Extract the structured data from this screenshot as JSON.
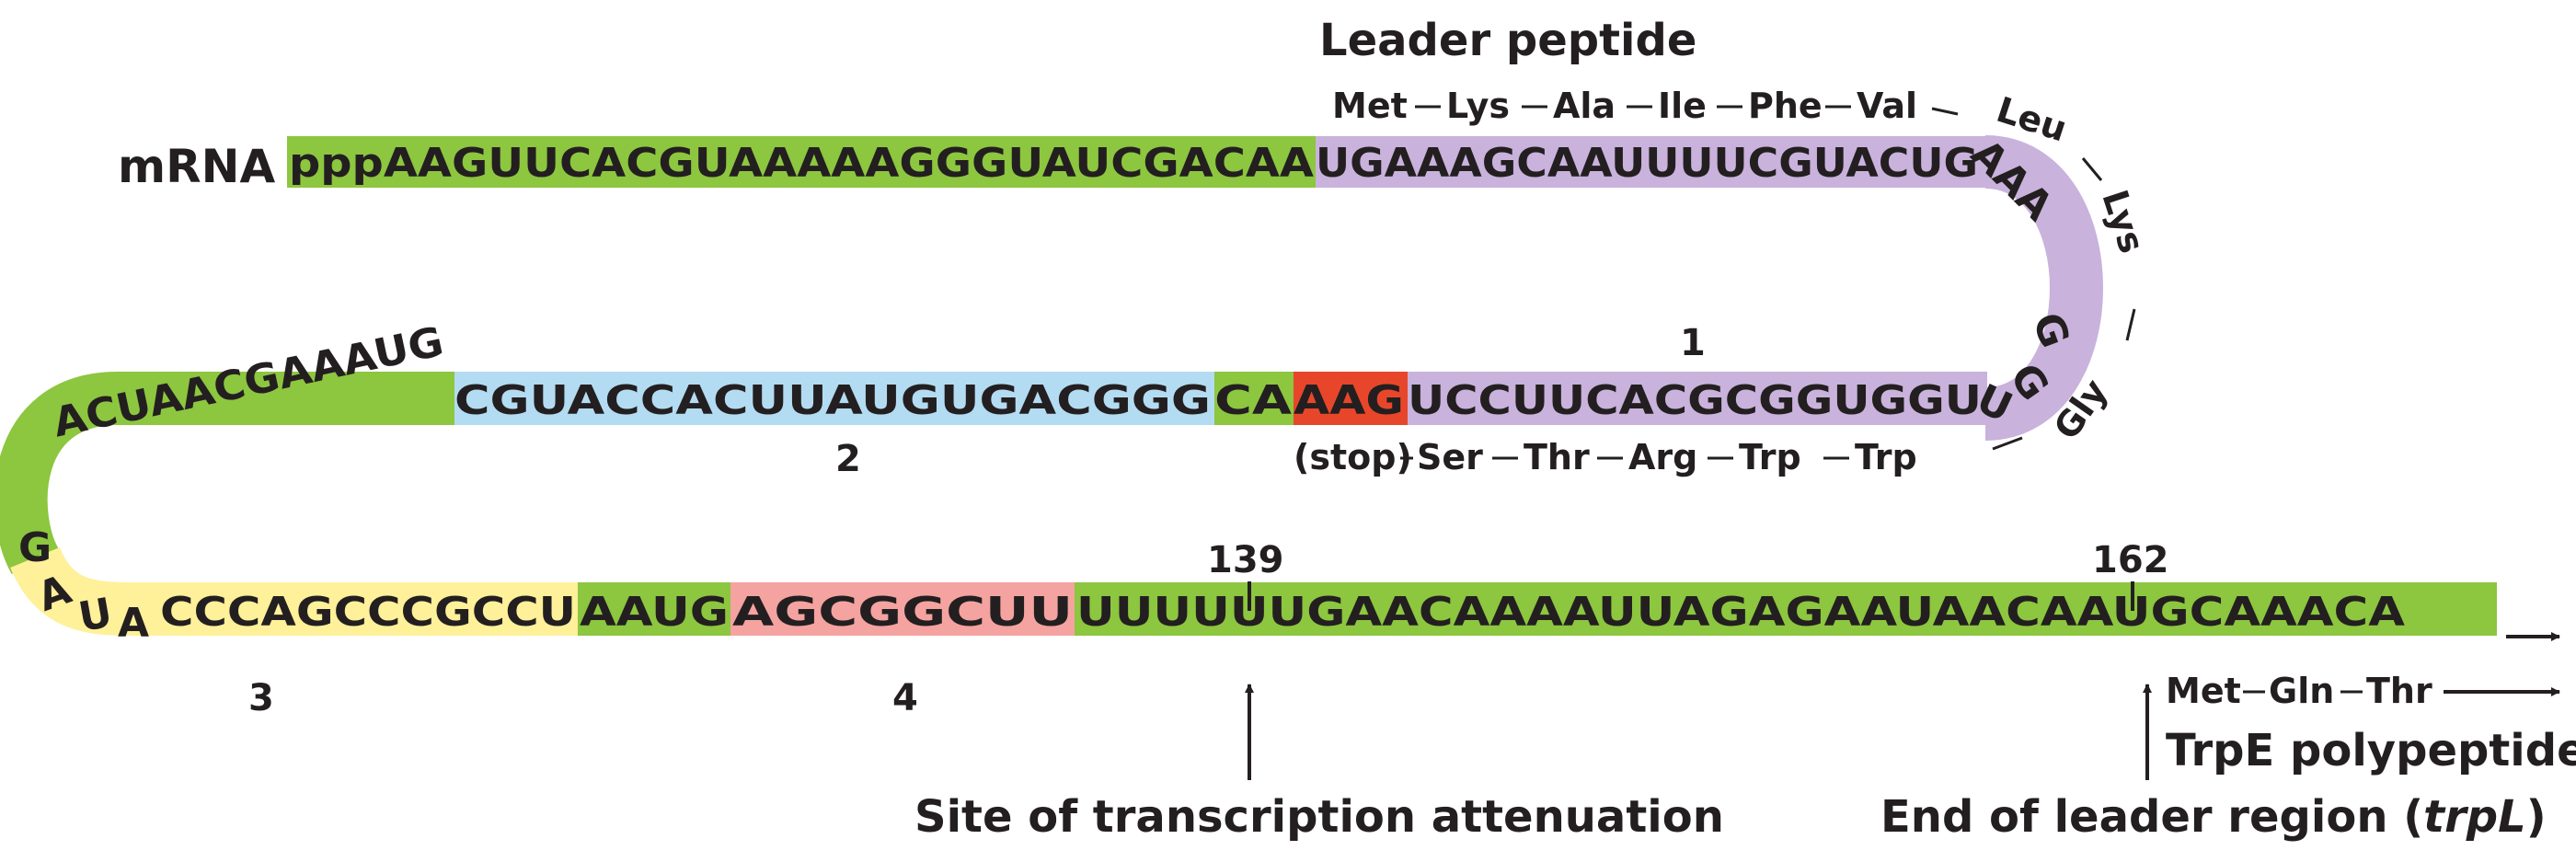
{
  "title": "Leader peptide",
  "mrna_label": "mRNA",
  "colors": {
    "green": "#8dc63f",
    "lavender": "#c9b2dc",
    "blue": "#b3dcf2",
    "red": "#e8462a",
    "yellow": "#fff09a",
    "pink": "#f4a3a0",
    "text": "#231f20"
  },
  "row1": {
    "seg_a": "pppAAGUUCACGUAAAAAGGGUAUCGACAA",
    "seg_b": "UGAAAGCAAUUUUCGUACUG"
  },
  "turn1": {
    "aaa": "AAA",
    "g1": "G",
    "g2": "G",
    "u2": "U"
  },
  "row2": {
    "seg_a": "ACUAACGAAAUG",
    "seg_b": "CGUACCACUUAUGUGACGGG",
    "seg_c": "CA",
    "seg_d": "AAG",
    "seg_e": "UCCUUCACGCGGUGGU"
  },
  "turn2": {
    "g": "G",
    "a": "A",
    "u": "U",
    "a2": "A"
  },
  "row3": {
    "seg_a": "CCCAGCCCGCCU",
    "seg_b": "AAUG",
    "seg_c": "AGCGGCUU",
    "seg_d": "UUUUUUGAACAAAAUUAGAGAAUAACAAUGCAAACA"
  },
  "region_labels": {
    "r1": "1",
    "r2": "2",
    "r3": "3",
    "r4": "4"
  },
  "peptide": {
    "row1": [
      "Met",
      "Lys",
      "Ala",
      "Ile",
      "Phe",
      "Val"
    ],
    "curve": [
      "Leu",
      "Lys",
      "Gly"
    ],
    "row2_stop": "(stop)",
    "row2": [
      "Ser",
      "Thr",
      "Arg",
      "Trp",
      "Trp"
    ],
    "trpE": [
      "Met",
      "Gln",
      "Thr"
    ]
  },
  "positions": {
    "p139": "139",
    "p162": "162"
  },
  "annotations": {
    "trpe": "TrpE polypeptide",
    "attenuation": "Site of transcription attenuation",
    "end_leader": "End of leader region (",
    "end_leader_gene": "trpL",
    "end_leader_close": ")"
  }
}
